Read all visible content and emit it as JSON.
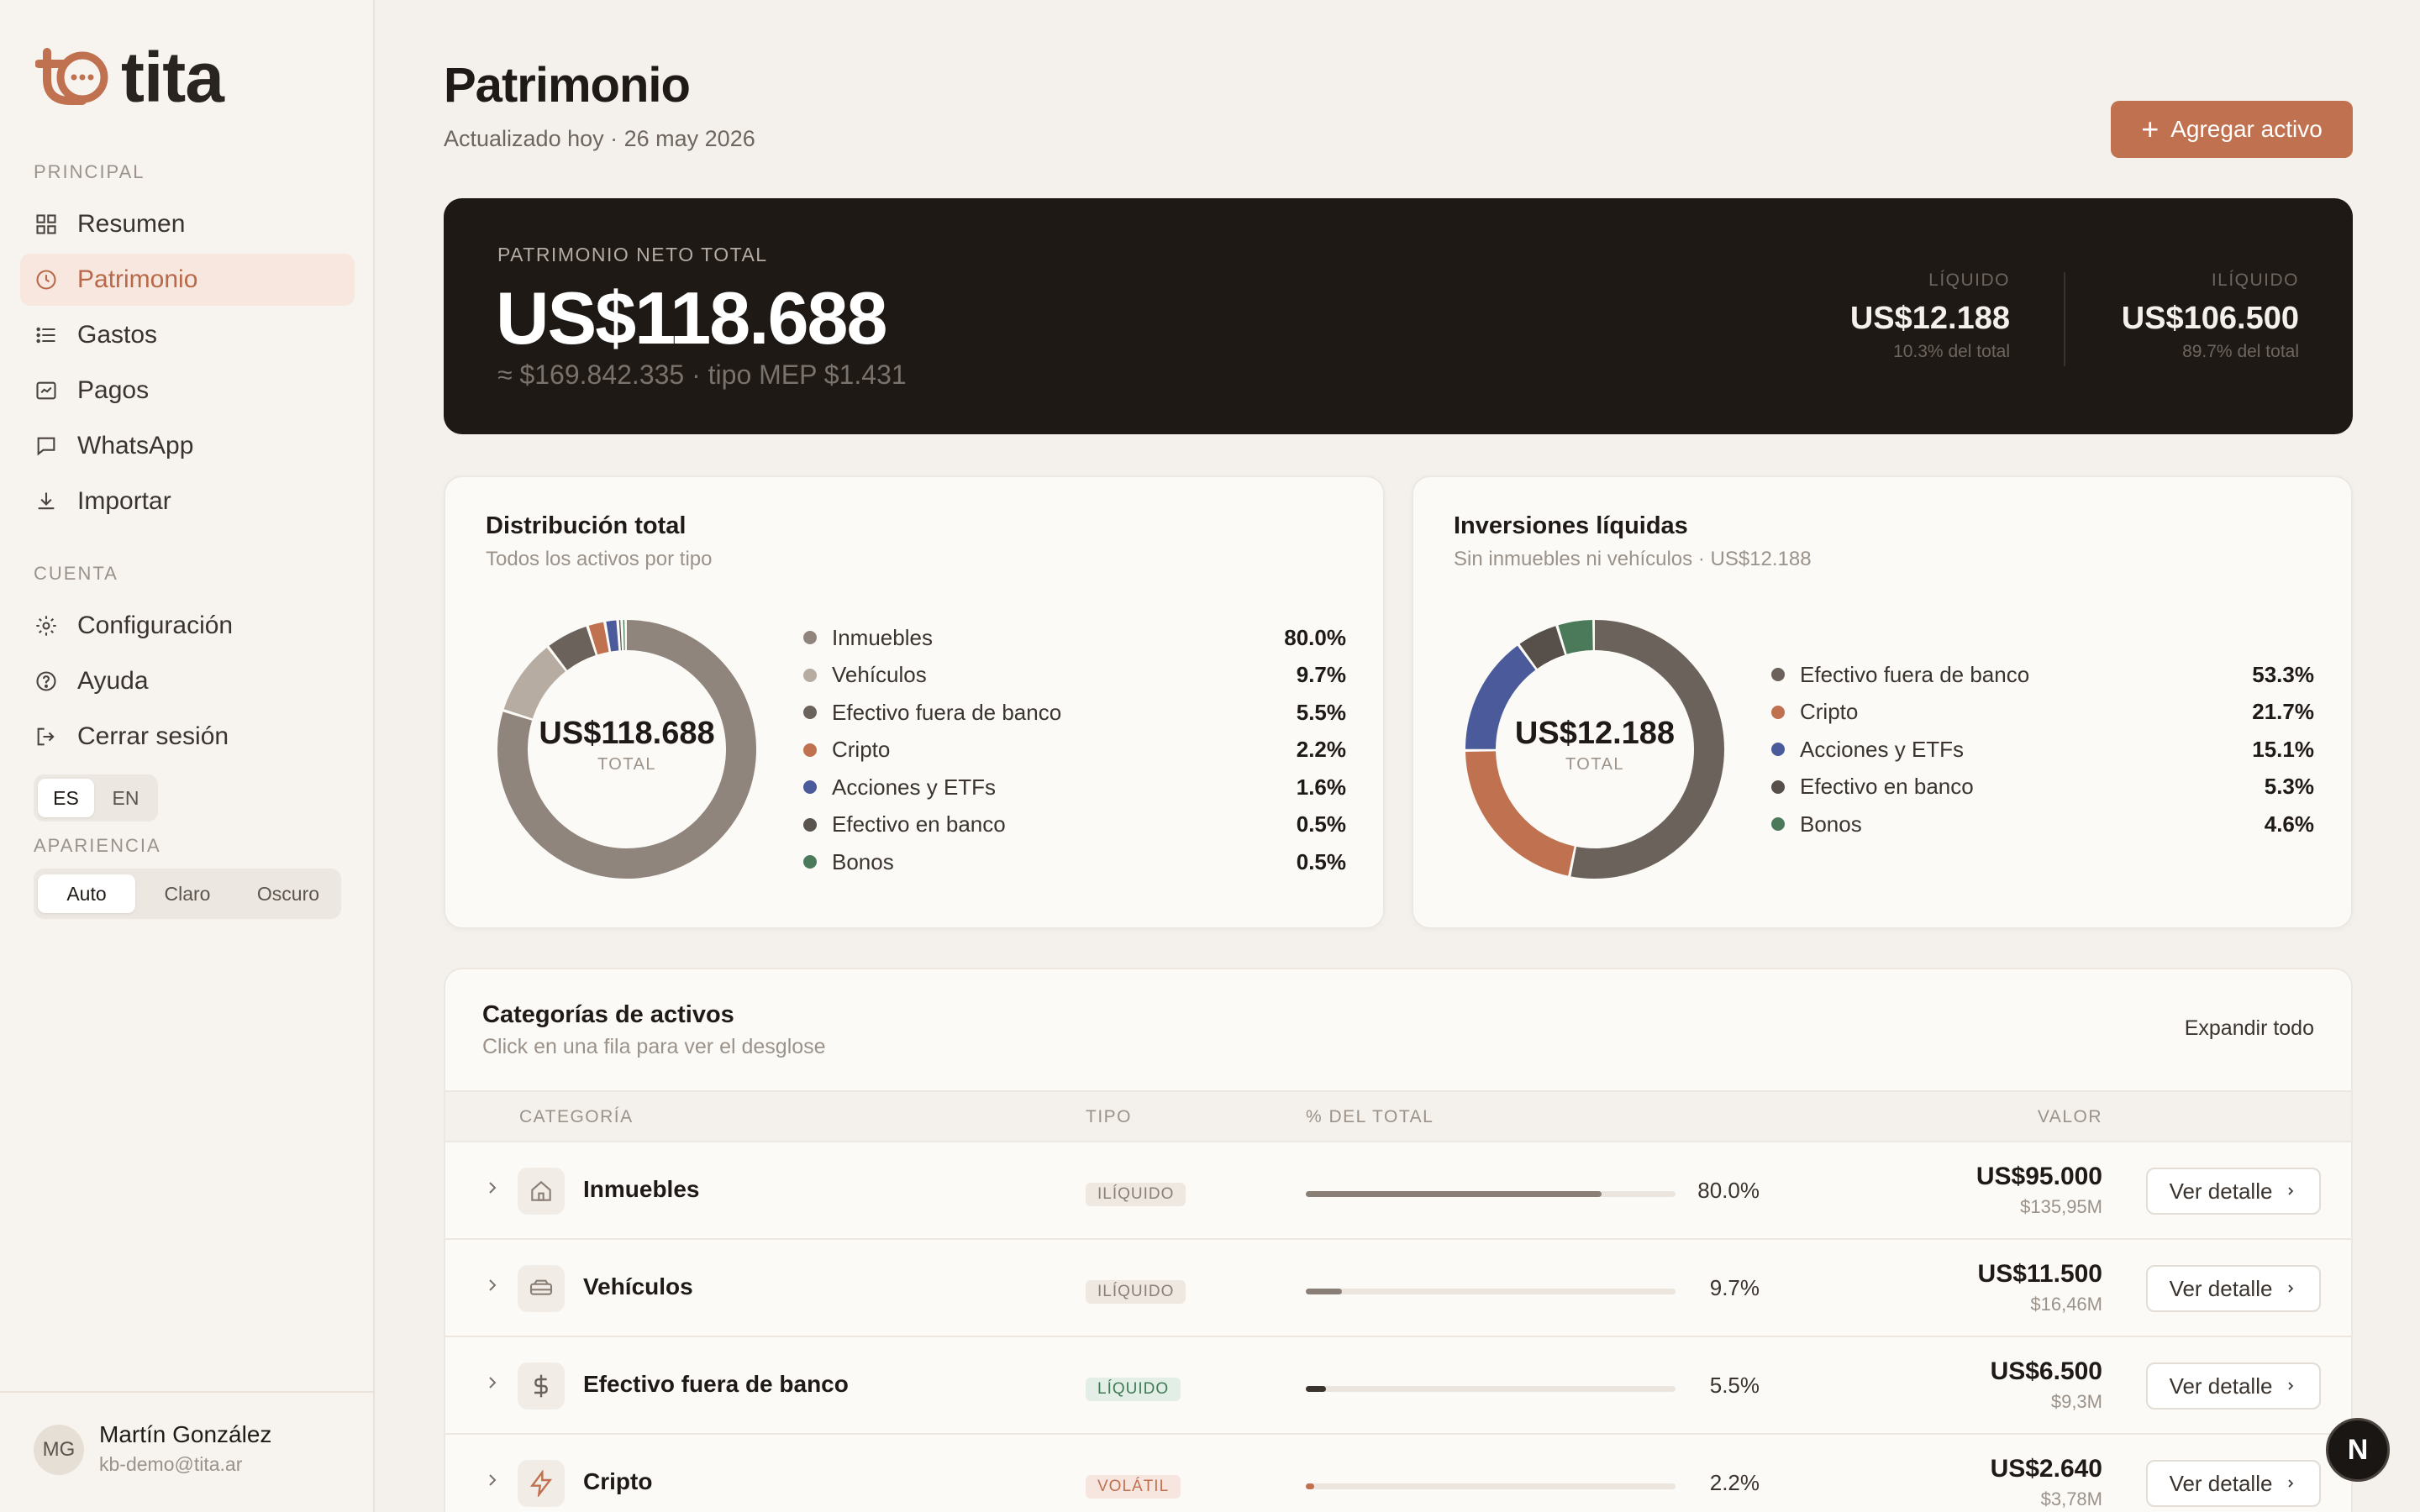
{
  "brand": {
    "name": "tita",
    "accent": "#c0714f"
  },
  "sidebar": {
    "section_principal": "PRINCIPAL",
    "section_cuenta": "CUENTA",
    "section_apariencia": "APARIENCIA",
    "items": [
      {
        "label": "Resumen",
        "icon": "grid-icon"
      },
      {
        "label": "Patrimonio",
        "icon": "clock-icon",
        "active": true
      },
      {
        "label": "Gastos",
        "icon": "list-icon"
      },
      {
        "label": "Pagos",
        "icon": "receipt-icon"
      },
      {
        "label": "WhatsApp",
        "icon": "chat-icon"
      },
      {
        "label": "Importar",
        "icon": "download-icon"
      }
    ],
    "account_items": [
      {
        "label": "Configuración",
        "icon": "gear-icon"
      },
      {
        "label": "Ayuda",
        "icon": "help-icon"
      },
      {
        "label": "Cerrar sesión",
        "icon": "logout-icon"
      }
    ],
    "lang": {
      "options": [
        "ES",
        "EN"
      ],
      "selected": "ES"
    },
    "theme": {
      "options": [
        "Auto",
        "Claro",
        "Oscuro"
      ],
      "selected": "Auto"
    },
    "user": {
      "initials": "MG",
      "name": "Martín González",
      "email": "kb-demo@tita.ar"
    }
  },
  "header": {
    "title": "Patrimonio",
    "subtitle": "Actualizado hoy · 26 may 2026",
    "add_button": "Agregar activo"
  },
  "hero": {
    "label": "PATRIMONIO NETO TOTAL",
    "value": "US$118.688",
    "sub": "≈ $169.842.335 · tipo MEP $1.431",
    "liquid": {
      "label": "LÍQUIDO",
      "value": "US$12.188",
      "pct": "10.3% del total"
    },
    "illiquid": {
      "label": "ILÍQUIDO",
      "value": "US$106.500",
      "pct": "89.7% del total"
    }
  },
  "distribution": {
    "title": "Distribución total",
    "subtitle": "Todos los activos por tipo",
    "center_value": "US$118.688",
    "center_label": "TOTAL"
  },
  "liquid_investments": {
    "title": "Inversiones líquidas",
    "subtitle": "Sin inmuebles ni vehículos · US$12.188",
    "center_value": "US$12.188",
    "center_label": "TOTAL"
  },
  "chart_data": [
    {
      "type": "pie",
      "title": "Distribución total",
      "categories": [
        "Inmuebles",
        "Vehículos",
        "Efectivo fuera de banco",
        "Cripto",
        "Acciones y ETFs",
        "Efectivo en banco",
        "Bonos"
      ],
      "values": [
        80.0,
        9.7,
        5.5,
        2.2,
        1.6,
        0.5,
        0.5
      ],
      "labels": [
        "80.0%",
        "9.7%",
        "5.5%",
        "2.2%",
        "1.6%",
        "0.5%",
        "0.5%"
      ],
      "colors": [
        "#8f857c",
        "#b7aca1",
        "#6b625b",
        "#c0714f",
        "#4a5a9a",
        "#5b534d",
        "#4a7a5a"
      ]
    },
    {
      "type": "pie",
      "title": "Inversiones líquidas",
      "categories": [
        "Efectivo fuera de banco",
        "Cripto",
        "Acciones y ETFs",
        "Efectivo en banco",
        "Bonos"
      ],
      "values": [
        53.3,
        21.7,
        15.1,
        5.3,
        4.6
      ],
      "labels": [
        "53.3%",
        "21.7%",
        "15.1%",
        "5.3%",
        "4.6%"
      ],
      "colors": [
        "#6b625b",
        "#c0714f",
        "#4a5a9a",
        "#57504a",
        "#4a7a5a"
      ]
    }
  ],
  "categories_table": {
    "title": "Categorías de activos",
    "subtitle": "Click en una fila para ver el desglose",
    "expand_all": "Expandir todo",
    "headers": {
      "category": "CATEGORÍA",
      "type": "TIPO",
      "pct": "% DEL TOTAL",
      "value": "VALOR"
    },
    "rows": [
      {
        "name": "Inmuebles",
        "icon": "house-icon",
        "type": "ILÍQUIDO",
        "type_class": "iliq",
        "pct": 80.0,
        "pct_label": "80.0%",
        "value": "US$95.000",
        "value_sub": "$135,95M",
        "button": "Ver detalle"
      },
      {
        "name": "Vehículos",
        "icon": "car-icon",
        "type": "ILÍQUIDO",
        "type_class": "iliq",
        "pct": 9.7,
        "pct_label": "9.7%",
        "value": "US$11.500",
        "value_sub": "$16,46M",
        "button": "Ver detalle"
      },
      {
        "name": "Efectivo fuera de banco",
        "icon": "dollar-icon",
        "type": "LÍQUIDO",
        "type_class": "liq",
        "pct": 5.5,
        "pct_label": "5.5%",
        "value": "US$6.500",
        "value_sub": "$9,3M",
        "button": "Ver detalle"
      },
      {
        "name": "Cripto",
        "icon": "bolt-icon",
        "type": "VOLÁTIL",
        "type_class": "vol",
        "pct": 2.2,
        "pct_label": "2.2%",
        "value": "US$2.640",
        "value_sub": "$3,78M",
        "button": "Ver detalle"
      }
    ]
  },
  "fab": {
    "label": "N"
  }
}
